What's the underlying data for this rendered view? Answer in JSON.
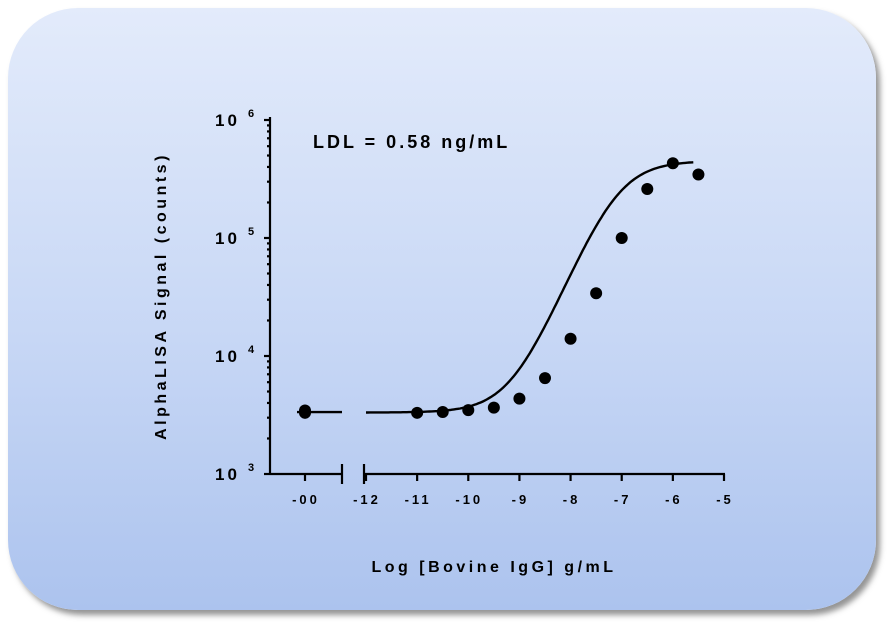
{
  "chart_data": {
    "type": "scatter",
    "title": "",
    "annotation": "LDL = 0.58 ng/mL",
    "xlabel": "Log [Bovine IgG] g/mL",
    "ylabel": "AlphaLISA Signal (counts)",
    "y_scale": "log",
    "ylim": [
      1000,
      1000000
    ],
    "xlim": [
      -12.2,
      -5
    ],
    "x_axis_break": true,
    "x_break_tick": {
      "label": "-00",
      "y_values": [
        3300,
        3450
      ]
    },
    "x_ticks": [
      -12,
      -11,
      -10,
      -9,
      -8,
      -7,
      -6,
      -5
    ],
    "x_tick_labels": [
      "-12",
      "-11",
      "-10",
      "-9",
      "-8",
      "-7",
      "-6",
      "-5"
    ],
    "y_ticks": [
      {
        "value": 1000,
        "base": "10",
        "exp": "3"
      },
      {
        "value": 10000,
        "base": "10",
        "exp": "4"
      },
      {
        "value": 100000,
        "base": "10",
        "exp": "5"
      },
      {
        "value": 1000000,
        "base": "10",
        "exp": "6"
      }
    ],
    "points": [
      {
        "x": -11,
        "y": 3300
      },
      {
        "x": -10.5,
        "y": 3350
      },
      {
        "x": -10,
        "y": 3480
      },
      {
        "x": -9.5,
        "y": 3650
      },
      {
        "x": -9,
        "y": 4350
      },
      {
        "x": -8.5,
        "y": 6500
      },
      {
        "x": -8,
        "y": 14000
      },
      {
        "x": -7.5,
        "y": 34000
      },
      {
        "x": -7,
        "y": 100000
      },
      {
        "x": -6.5,
        "y": 260000
      },
      {
        "x": -6,
        "y": 430000
      },
      {
        "x": -5.5,
        "y": 345000
      }
    ],
    "fit": {
      "model": "4PL",
      "bottom": 3320,
      "top": 450000,
      "log_ec50": -7.1,
      "hill": 1.05,
      "x_range": [
        -12,
        -5.6
      ],
      "baseline_dash_y": 3350
    },
    "grid": false,
    "legend": "none"
  }
}
